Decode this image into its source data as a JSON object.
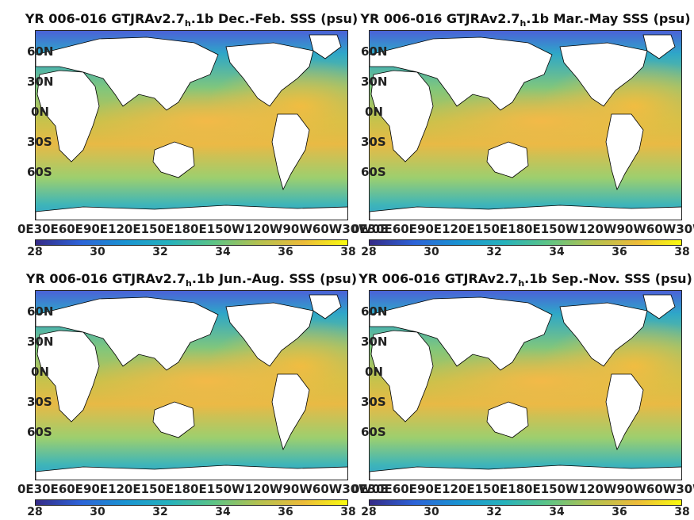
{
  "panels": [
    {
      "title_pre": "YR 006-016 GTJRAv2.7",
      "title_sub": "h",
      "title_post": ".1b Dec.-Feb. SSS (psu)"
    },
    {
      "title_pre": "YR 006-016 GTJRAv2.7",
      "title_sub": "h",
      "title_post": ".1b Mar.-May SSS (psu)"
    },
    {
      "title_pre": "YR 006-016 GTJRAv2.7",
      "title_sub": "h",
      "title_post": ".1b Jun.-Aug. SSS (psu)"
    },
    {
      "title_pre": "YR 006-016 GTJRAv2.7",
      "title_sub": "h",
      "title_post": ".1b Sep.-Nov. SSS (psu)"
    }
  ],
  "lat_labels": [
    "60N",
    "30N",
    "0N",
    "30S",
    "60S"
  ],
  "lon_labels": [
    "0E",
    "30E",
    "60E",
    "90E",
    "120E",
    "150E",
    "180E",
    "150W",
    "120W",
    "90W",
    "60W",
    "30W",
    "0E"
  ],
  "colorbar_ticks": [
    "28",
    "30",
    "32",
    "34",
    "36",
    "38"
  ],
  "colors": {
    "land": "#ffffff",
    "colormap": "parula"
  }
}
